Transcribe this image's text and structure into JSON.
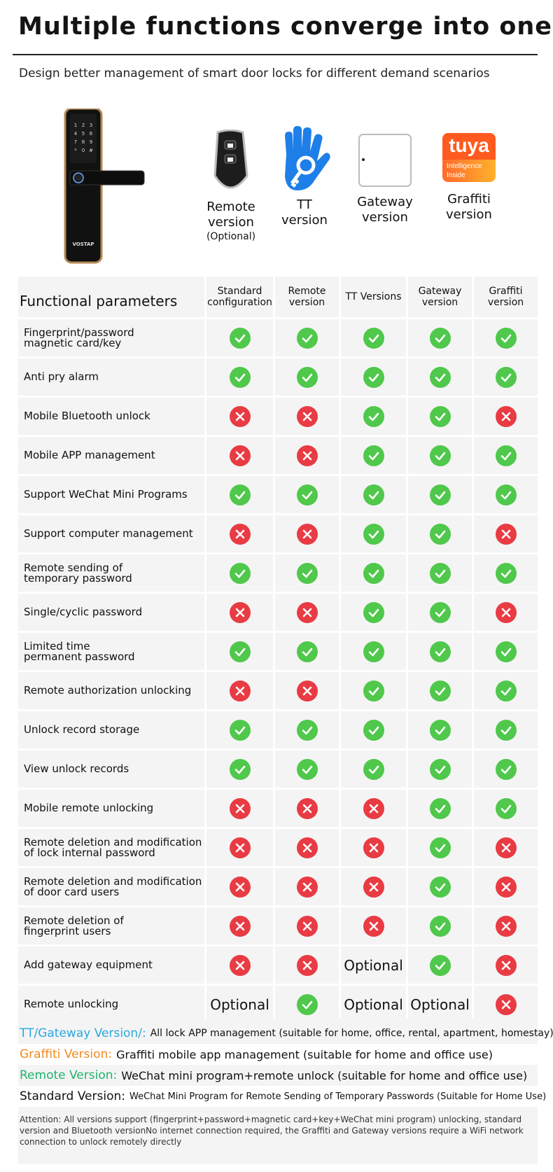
{
  "header": {
    "title": "Multiple functions converge into one",
    "subtitle": "Design better management of smart door locks for different demand scenarios"
  },
  "lock_image": {
    "brand": "VOSTAP"
  },
  "products": [
    {
      "label": "Remote\nversion",
      "sub": "(Optional)",
      "icon": "remote-key-icon"
    },
    {
      "label": "TT\nversion",
      "sub": "",
      "icon": "tt-hand-key-icon"
    },
    {
      "label": "Gateway\nversion",
      "sub": "",
      "icon": "gateway-icon"
    },
    {
      "label": "Graffiti\nversion",
      "sub": "",
      "icon": "tuya-logo-icon",
      "logo_text": "tuya",
      "logo_sub": "Intelligence Inside"
    }
  ],
  "table": {
    "header": [
      "Functional parameters",
      "Standard configuration",
      "Remote version",
      "TT Versions",
      "Gateway version",
      "Graffiti version"
    ],
    "rows": [
      {
        "feature": "Fingerprint/password\nmagnetic card/key",
        "values": [
          "yes",
          "yes",
          "yes",
          "yes",
          "yes"
        ]
      },
      {
        "feature": "Anti pry alarm",
        "values": [
          "yes",
          "yes",
          "yes",
          "yes",
          "yes"
        ]
      },
      {
        "feature": "Mobile Bluetooth unlock",
        "values": [
          "no",
          "no",
          "yes",
          "yes",
          "no"
        ]
      },
      {
        "feature": "Mobile APP management",
        "values": [
          "no",
          "no",
          "yes",
          "yes",
          "yes"
        ]
      },
      {
        "feature": "Support WeChat Mini Programs",
        "values": [
          "yes",
          "yes",
          "yes",
          "yes",
          "yes"
        ]
      },
      {
        "feature": "Support computer management",
        "values": [
          "no",
          "no",
          "yes",
          "yes",
          "no"
        ]
      },
      {
        "feature": "Remote sending of\ntemporary password",
        "values": [
          "yes",
          "yes",
          "yes",
          "yes",
          "yes"
        ]
      },
      {
        "feature": "Single/cyclic password",
        "values": [
          "no",
          "no",
          "yes",
          "yes",
          "no"
        ]
      },
      {
        "feature": "Limited time\npermanent password",
        "values": [
          "yes",
          "yes",
          "yes",
          "yes",
          "yes"
        ]
      },
      {
        "feature": "Remote authorization unlocking",
        "values": [
          "no",
          "no",
          "yes",
          "yes",
          "yes"
        ]
      },
      {
        "feature": "Unlock record storage",
        "values": [
          "yes",
          "yes",
          "yes",
          "yes",
          "yes"
        ]
      },
      {
        "feature": "View unlock records",
        "values": [
          "yes",
          "yes",
          "yes",
          "yes",
          "yes"
        ]
      },
      {
        "feature": "Mobile remote unlocking",
        "values": [
          "no",
          "no",
          "no",
          "yes",
          "yes"
        ]
      },
      {
        "feature": "Remote deletion and modification\nof lock internal password",
        "values": [
          "no",
          "no",
          "no",
          "yes",
          "no"
        ]
      },
      {
        "feature": "Remote deletion and modification\nof door card users",
        "values": [
          "no",
          "no",
          "no",
          "yes",
          "no"
        ]
      },
      {
        "feature": "Remote deletion of\nfingerprint users",
        "values": [
          "no",
          "no",
          "no",
          "yes",
          "no"
        ]
      },
      {
        "feature": "Add gateway equipment",
        "values": [
          "no",
          "no",
          "Optional",
          "yes",
          "no"
        ]
      },
      {
        "feature": "Remote unlocking",
        "values": [
          "Optional",
          "yes",
          "Optional",
          "Optional",
          "no"
        ]
      }
    ]
  },
  "legend": {
    "lines": [
      {
        "key": "TT/Gateway Version/:",
        "text": "All lock APP management (suitable for home, office, rental, apartment, homestay)",
        "color": "#2aa7e0"
      },
      {
        "key": "Graffiti Version:",
        "text": "Graffiti mobile app management (suitable for home and office use)",
        "color": "#f08a1c"
      },
      {
        "key": "Remote Version:",
        "text": "WeChat mini program+remote unlock (suitable for home and office use)",
        "color": "#1fb36b"
      },
      {
        "key": "Standard Version:",
        "text": "WeChat Mini Program for Remote Sending of Temporary Passwords (Suitable for Home Use)",
        "color": "#111111"
      }
    ],
    "attention": "Attention: All versions support (fingerprint+password+magnetic card+key+WeChat mini program) unlocking, standard version and Bluetooth versionNo internet connection required, the Graffiti and Gateway versions require a WiFi network connection to unlock remotely directly"
  },
  "colors": {
    "tick": "#4fc84b",
    "cross": "#e93b43",
    "cell_bg": "#f4f4f4"
  }
}
